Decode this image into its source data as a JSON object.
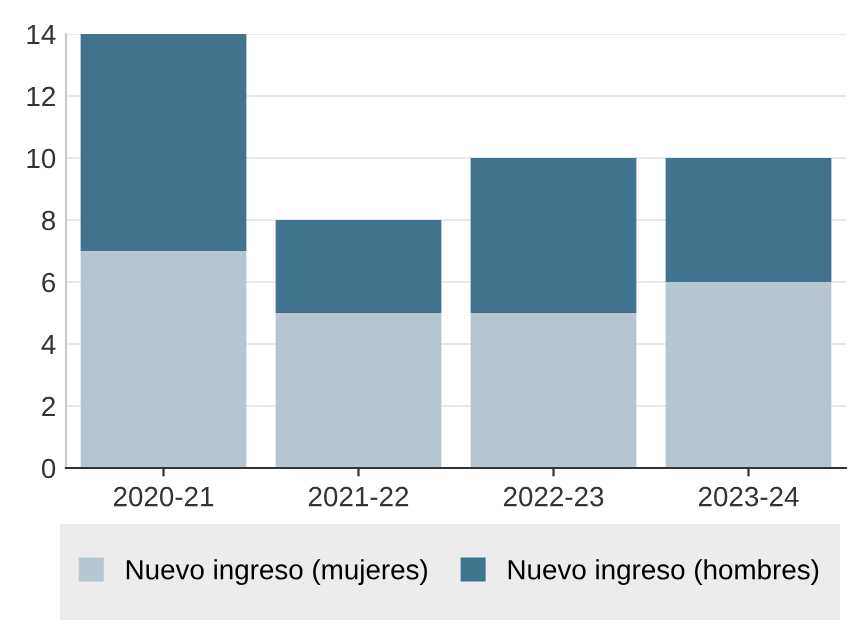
{
  "chart_data": {
    "type": "bar",
    "stacked": true,
    "categories": [
      "2020-21",
      "2021-22",
      "2022-23",
      "2023-24"
    ],
    "series": [
      {
        "name": "Nuevo ingreso (mujeres)",
        "color": "#b5c6d0",
        "values": [
          7,
          5,
          5,
          6
        ]
      },
      {
        "name": "Nuevo ingreso (hombres)",
        "color": "#41738f",
        "values": [
          7,
          3,
          5,
          4
        ]
      }
    ],
    "ylim": [
      0,
      14
    ],
    "yticks": [
      0,
      2,
      4,
      6,
      8,
      10,
      12,
      14
    ],
    "grid": "y",
    "legend": "bottom"
  }
}
